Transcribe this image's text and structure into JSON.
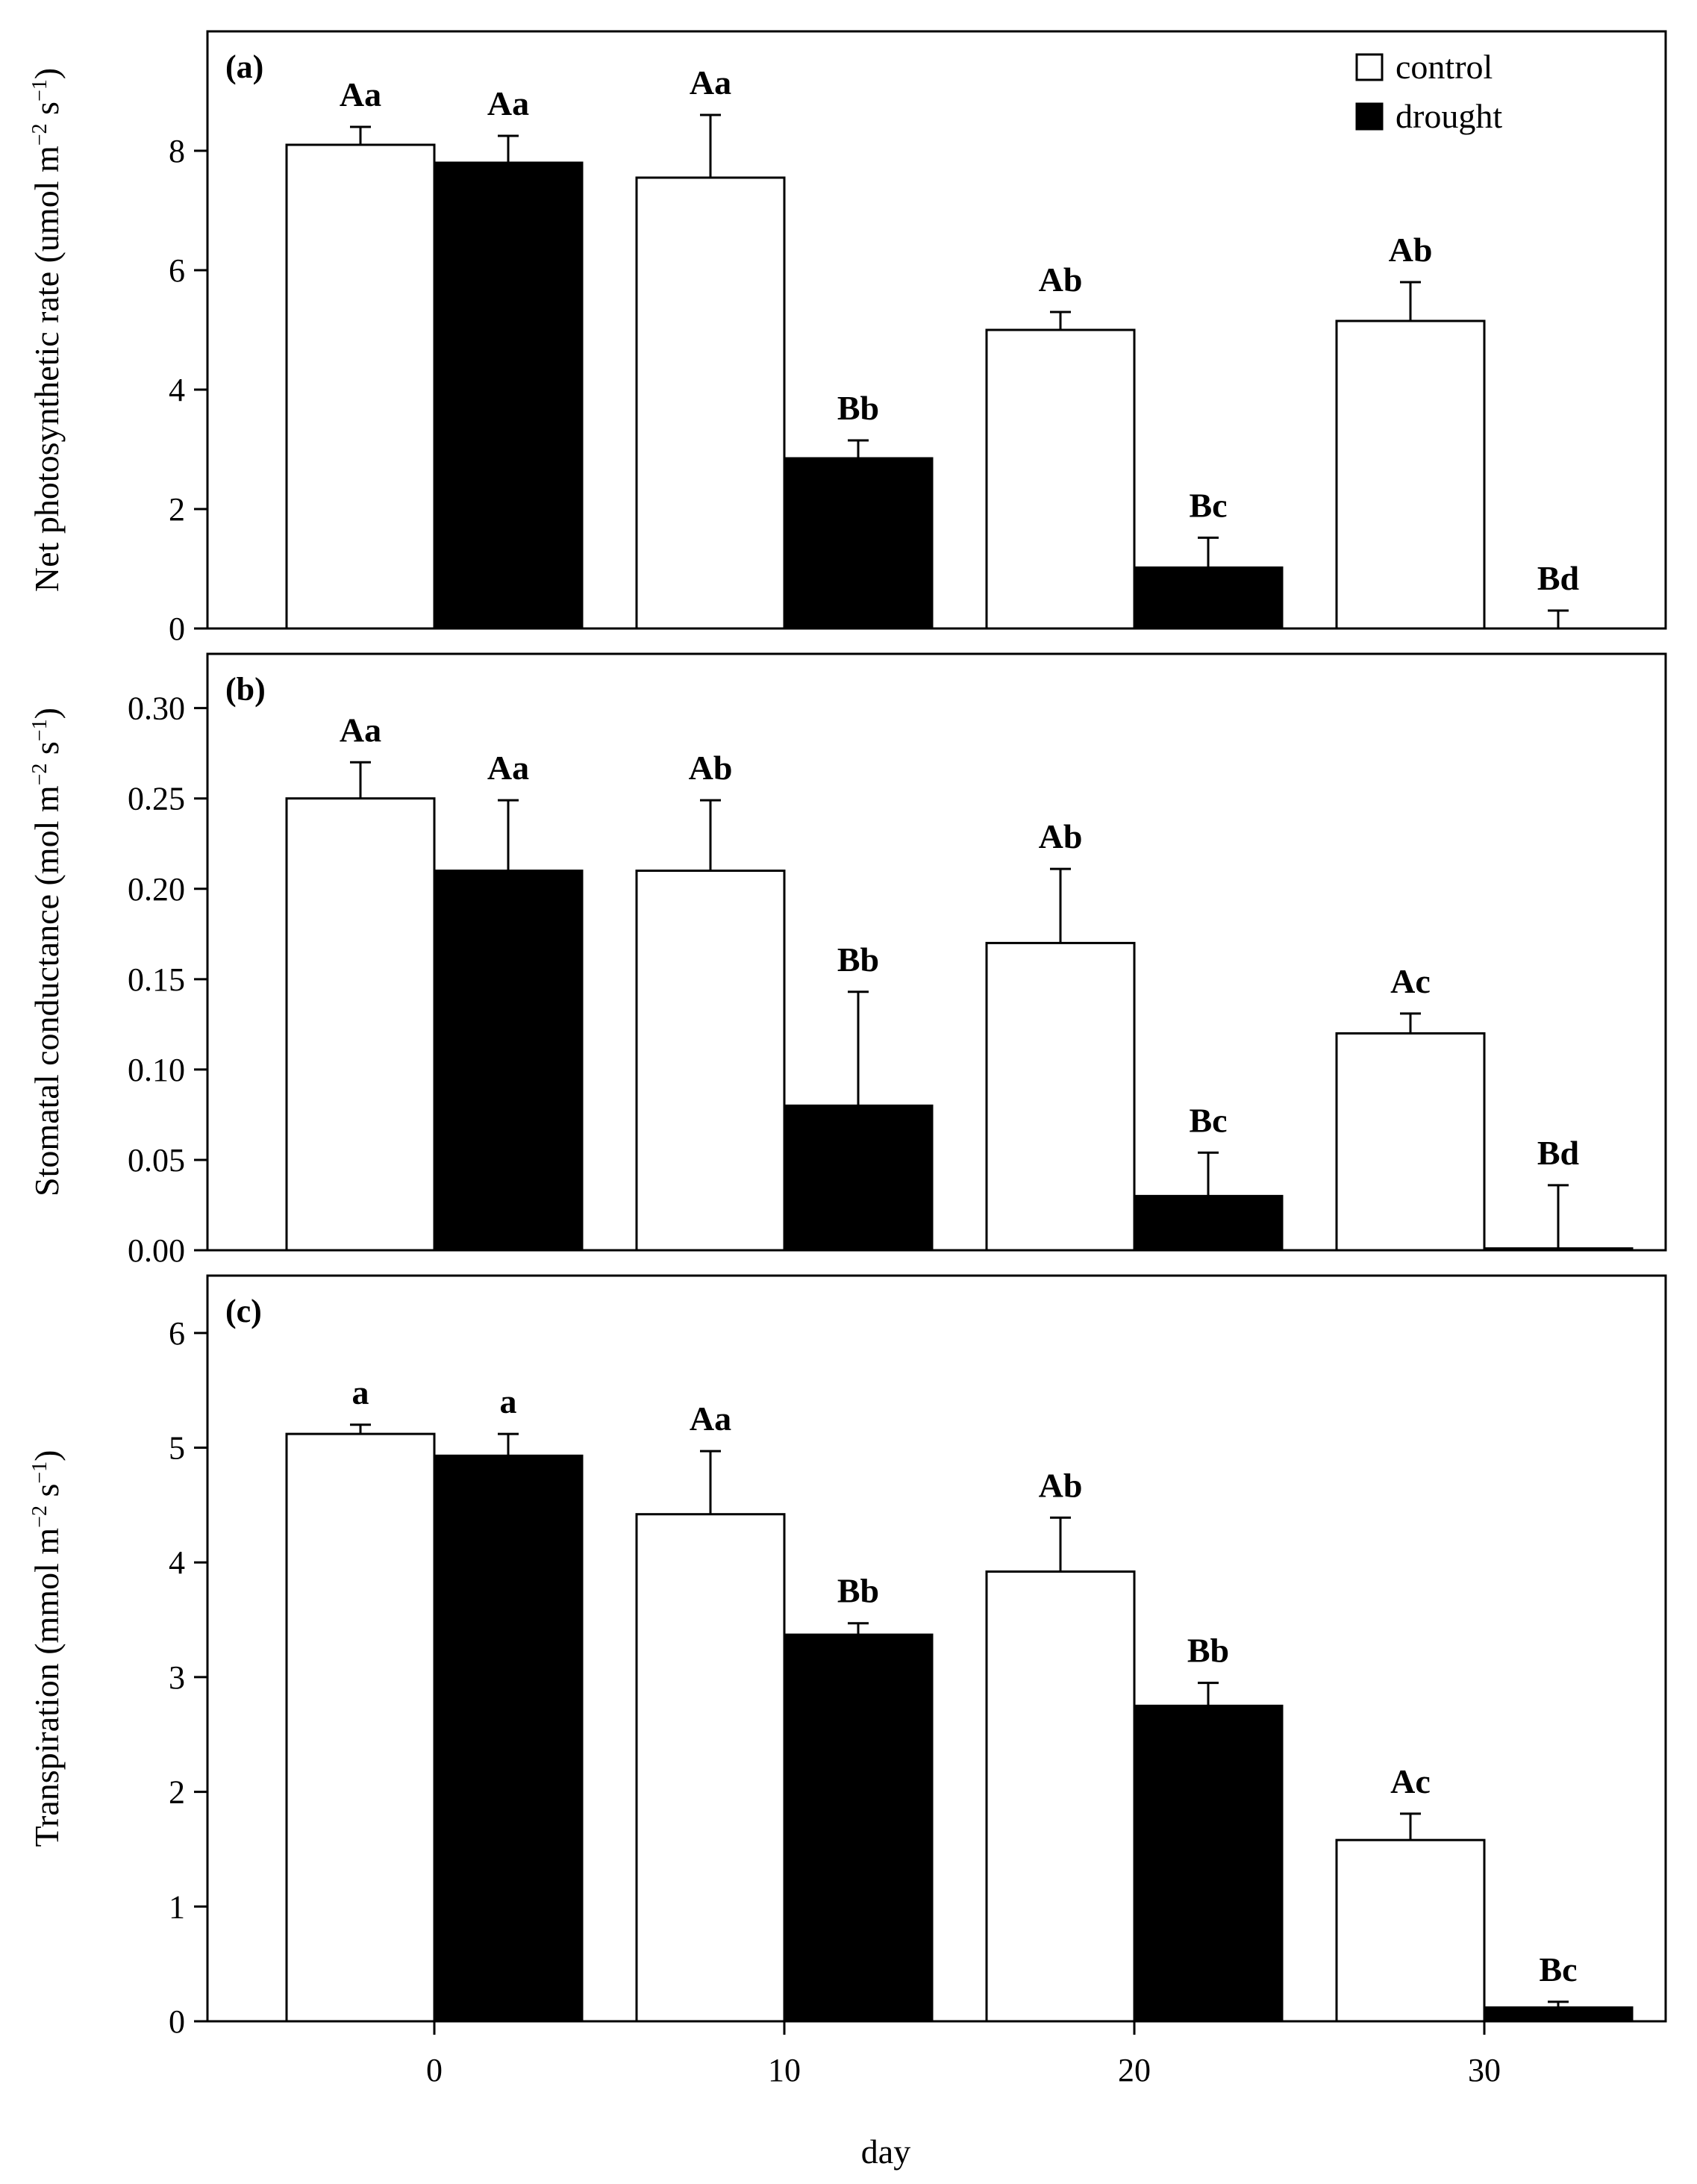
{
  "chart_data": {
    "xlabel": "day",
    "x_ticks": [
      "0",
      "10",
      "20",
      "30"
    ],
    "legend": [
      {
        "name": "control",
        "fill": "#ffffff"
      },
      {
        "name": "drought",
        "fill": "#000000"
      }
    ],
    "panels": [
      {
        "type": "bar",
        "tag": "(a)",
        "ylabel": {
          "main": "Net photosynthetic rate  (umol m",
          "exp1": "−2",
          "mid": " s",
          "exp2": "−1",
          "end": ")"
        },
        "ylim": [
          0,
          10
        ],
        "yticks": [
          "0",
          "2",
          "4",
          "6",
          "8"
        ],
        "series": [
          {
            "name": "control",
            "days": [
              0,
              10,
              20,
              30
            ],
            "values": [
              8.1,
              7.55,
              5.0,
              5.15
            ],
            "errors": [
              0.3,
              1.05,
              0.3,
              0.65
            ],
            "labels": [
              "Aa",
              "Aa",
              "Ab",
              "Ab"
            ]
          },
          {
            "name": "drought",
            "days": [
              0,
              10,
              20,
              30
            ],
            "values": [
              7.8,
              2.85,
              1.02,
              0.0
            ],
            "errors": [
              0.45,
              0.3,
              0.5,
              0.3
            ],
            "labels": [
              "Aa",
              "Bb",
              "Bc",
              "Bd"
            ]
          }
        ],
        "show_legend": true
      },
      {
        "type": "bar",
        "tag": "(b)",
        "ylabel": {
          "main": "Stomatal conductance  (mol m",
          "exp1": "−2",
          "mid": " s",
          "exp2": "−1",
          "end": ")"
        },
        "ylim": [
          0,
          0.33
        ],
        "yticks": [
          "0.00",
          "0.05",
          "0.10",
          "0.15",
          "0.20",
          "0.25",
          "0.30"
        ],
        "series": [
          {
            "name": "control",
            "days": [
              0,
              10,
              20,
              30
            ],
            "values": [
              0.25,
              0.21,
              0.17,
              0.12
            ],
            "errors": [
              0.02,
              0.039,
              0.041,
              0.011
            ],
            "labels": [
              "Aa",
              "Ab",
              "Ab",
              "Ac"
            ]
          },
          {
            "name": "drought",
            "days": [
              0,
              10,
              20,
              30
            ],
            "values": [
              0.21,
              0.08,
              0.03,
              0.001
            ],
            "errors": [
              0.039,
              0.063,
              0.024,
              0.035
            ],
            "labels": [
              "Aa",
              "Bb",
              "Bc",
              "Bd"
            ]
          }
        ],
        "show_legend": false
      },
      {
        "type": "bar",
        "tag": "(c)",
        "ylabel": {
          "main": "Transpiration  (mmol m",
          "exp1": "−2",
          "mid": " s",
          "exp2": "−1",
          "end": ")"
        },
        "ylim": [
          0,
          6.5
        ],
        "yticks": [
          "0",
          "1",
          "2",
          "3",
          "4",
          "5",
          "6"
        ],
        "series": [
          {
            "name": "control",
            "days": [
              0,
              10,
              20,
              30
            ],
            "values": [
              5.12,
              4.42,
              3.92,
              1.58
            ],
            "errors": [
              0.08,
              0.55,
              0.47,
              0.23
            ],
            "labels": [
              "a",
              "Aa",
              "Ab",
              "Ac"
            ]
          },
          {
            "name": "drought",
            "days": [
              0,
              10,
              20,
              30
            ],
            "values": [
              4.93,
              3.37,
              2.75,
              0.12
            ],
            "errors": [
              0.19,
              0.1,
              0.2,
              0.05
            ],
            "labels": [
              "a",
              "Bb",
              "Bb",
              "Bc"
            ]
          }
        ],
        "show_legend": false
      }
    ]
  }
}
